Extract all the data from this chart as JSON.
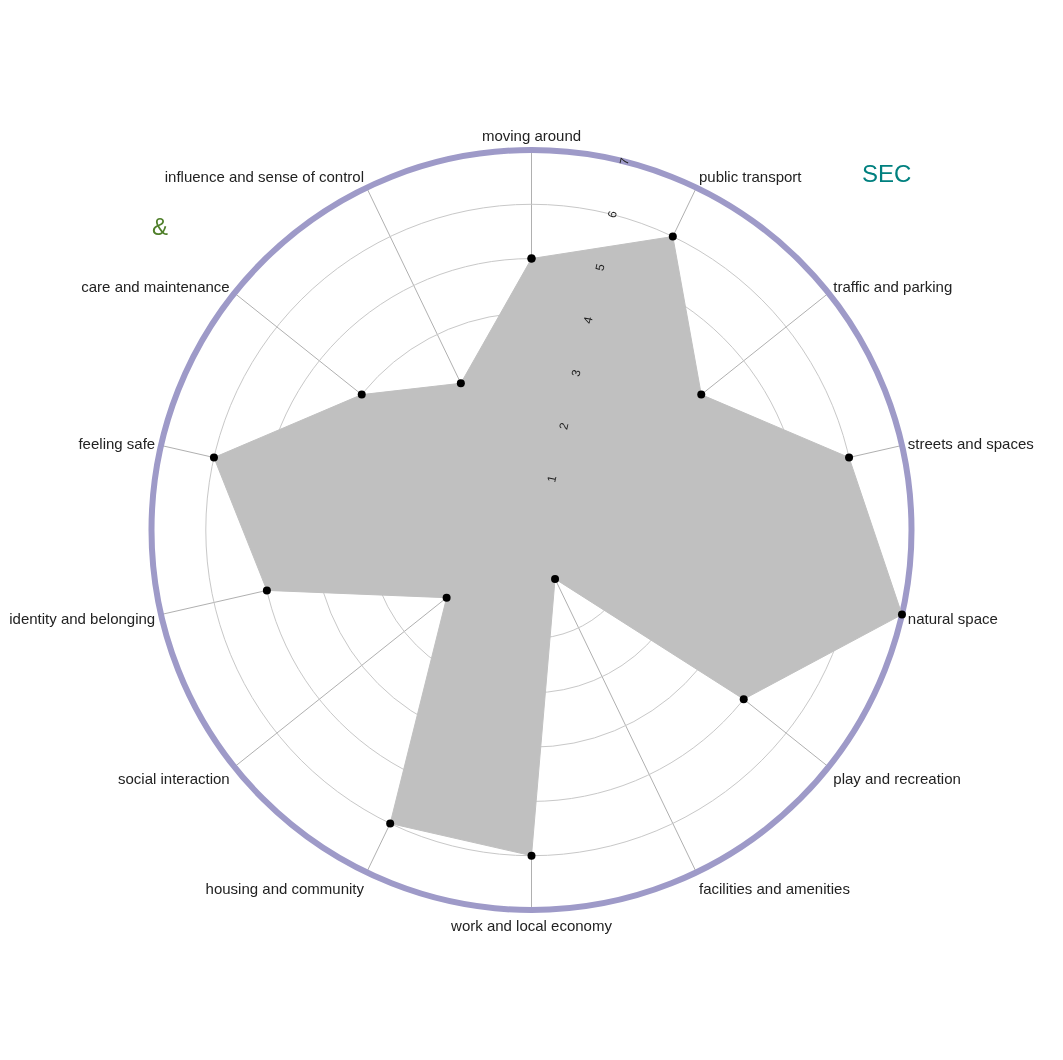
{
  "chart_data": {
    "type": "radar",
    "categories": [
      "moving around",
      "public transport",
      "traffic and parking",
      "streets and spaces",
      "natural space",
      "play and recreation",
      "facilities and amenities",
      "work and local economy",
      "housing and community",
      "social interaction",
      "identity and belonging",
      "feeling safe",
      "care and maintenance",
      "influence and sense of control"
    ],
    "series": [
      {
        "color": "#c0c0c0",
        "values": [
          5,
          6,
          4,
          6,
          7,
          5,
          1,
          6,
          6,
          2,
          5,
          6,
          4,
          3
        ]
      }
    ],
    "ylim": [
      0,
      7
    ],
    "yticks": [
      1,
      2,
      3,
      4,
      5,
      6,
      7
    ],
    "grid": true,
    "marker": "circle",
    "annotations": [
      "&",
      "SEC"
    ]
  }
}
